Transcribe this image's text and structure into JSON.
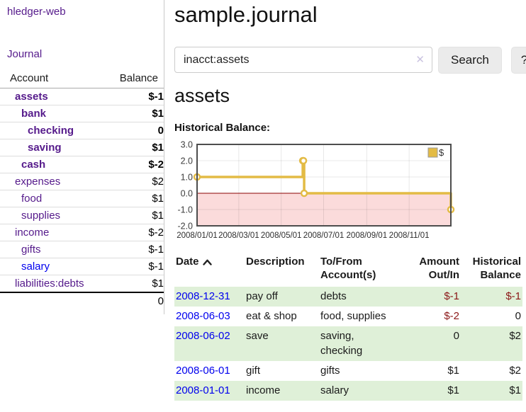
{
  "app": {
    "brand": "hledger-web",
    "nav_journal": "Journal"
  },
  "palette": {
    "link_purple": "#551A8B",
    "link_blue": "#0000EE",
    "negative_strong": "#8b1717",
    "negative_soft": "#c08181",
    "row_green": "#dff0d8",
    "chart_line_yellow": "#e3bb45"
  },
  "sidebar": {
    "account_header": "Account",
    "balance_header": "Balance",
    "accounts": [
      {
        "name": "assets",
        "balance": "$-1"
      },
      {
        "name": "bank",
        "balance": "$1"
      },
      {
        "name": "checking",
        "balance": "0"
      },
      {
        "name": "saving",
        "balance": "$1"
      },
      {
        "name": "cash",
        "balance": "$-2"
      },
      {
        "name": "expenses",
        "balance": "$2"
      },
      {
        "name": "food",
        "balance": "$1"
      },
      {
        "name": "supplies",
        "balance": "$1"
      },
      {
        "name": "income",
        "balance": "$-2"
      },
      {
        "name": "gifts",
        "balance": "$-1"
      },
      {
        "name": "salary",
        "balance": "$-1"
      },
      {
        "name": "liabilities:debts",
        "balance": "$1"
      }
    ],
    "total": "0"
  },
  "main": {
    "title": "sample.journal",
    "search": {
      "value": "inacct:assets",
      "clear": "✕",
      "search_button": "Search",
      "help_button": "?"
    },
    "heading": "assets",
    "chart_title": "Historical Balance:"
  },
  "chart_data": {
    "type": "line",
    "step": true,
    "title": "Historical Balance",
    "legend": "$",
    "legend_position": "top-right",
    "grid": true,
    "x_range": [
      "2008-01-01",
      "2008-12-31"
    ],
    "x_ticks": [
      "2008/01/01",
      "2008/03/01",
      "2008/05/01",
      "2008/07/01",
      "2008/09/01",
      "2008/11/01"
    ],
    "y_ticks": [
      3.0,
      2.0,
      1.0,
      0.0,
      -1.0,
      -2.0
    ],
    "ylim": [
      -2,
      3
    ],
    "negative_fill": "#fbdbdb",
    "zero_line_color": "#8b0000",
    "series": [
      {
        "name": "$",
        "color": "#e3bb45",
        "points": [
          [
            "2008-01-01",
            1
          ],
          [
            "2008-06-01",
            2
          ],
          [
            "2008-06-02",
            2
          ],
          [
            "2008-06-03",
            0
          ],
          [
            "2008-12-31",
            -1
          ]
        ]
      }
    ]
  },
  "register": {
    "headers": {
      "date": "Date",
      "description": "Description",
      "tofrom": "To/From Account(s)",
      "amount": "Amount Out/In",
      "balance": "Historical Balance"
    },
    "rows": [
      {
        "date": "2008-12-31",
        "description": "pay off",
        "accounts": "debts",
        "amount": "$-1",
        "balance": "$-1"
      },
      {
        "date": "2008-06-03",
        "description": "eat & shop",
        "accounts": "food, supplies",
        "amount": "$-2",
        "balance": "0"
      },
      {
        "date": "2008-06-02",
        "description": "save",
        "accounts": "saving, checking",
        "amount": "0",
        "balance": "$2"
      },
      {
        "date": "2008-06-01",
        "description": "gift",
        "accounts": "gifts",
        "amount": "$1",
        "balance": "$2"
      },
      {
        "date": "2008-01-01",
        "description": "income",
        "accounts": "salary",
        "amount": "$1",
        "balance": "$1"
      }
    ]
  }
}
